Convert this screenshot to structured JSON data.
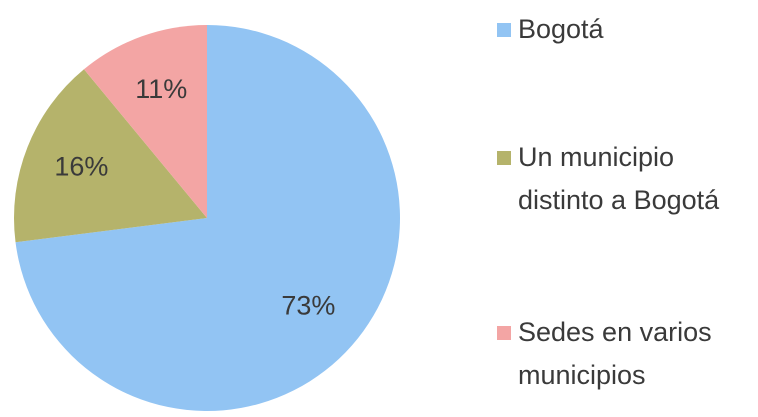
{
  "chart_data": {
    "type": "pie",
    "categories": [
      "Bogotá",
      "Un municipio distinto a Bogotá",
      "Sedes en varios municipios"
    ],
    "values": [
      73,
      16,
      11
    ],
    "value_labels": [
      "73%",
      "16%",
      "11%"
    ],
    "colors": [
      "#92c4f3",
      "#b5b36b",
      "#f3a5a4"
    ]
  }
}
